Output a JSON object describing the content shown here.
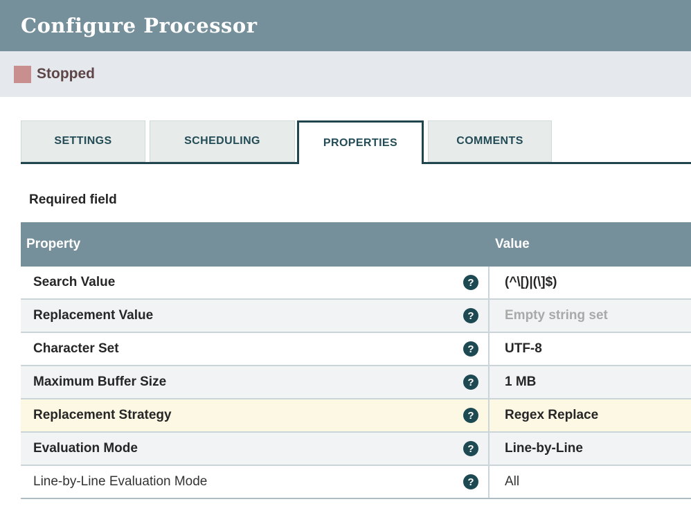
{
  "header": {
    "title": "Configure Processor"
  },
  "status": {
    "label": "Stopped",
    "color": "#C98F8F"
  },
  "tabs": [
    {
      "label": "SETTINGS",
      "active": false
    },
    {
      "label": "SCHEDULING",
      "active": false
    },
    {
      "label": "PROPERTIES",
      "active": true
    },
    {
      "label": "COMMENTS",
      "active": false
    }
  ],
  "required_note": "Required field",
  "table": {
    "columns": {
      "property": "Property",
      "value": "Value"
    },
    "help_icon": "?",
    "rows": [
      {
        "property": "Search Value",
        "value": "(^\\[)|(\\]$)",
        "required": true,
        "highlighted": false,
        "empty_set": false
      },
      {
        "property": "Replacement Value",
        "value": "Empty string set",
        "required": true,
        "highlighted": false,
        "empty_set": true
      },
      {
        "property": "Character Set",
        "value": "UTF-8",
        "required": true,
        "highlighted": false,
        "empty_set": false
      },
      {
        "property": "Maximum Buffer Size",
        "value": "1 MB",
        "required": true,
        "highlighted": false,
        "empty_set": false
      },
      {
        "property": "Replacement Strategy",
        "value": "Regex Replace",
        "required": true,
        "highlighted": true,
        "empty_set": false
      },
      {
        "property": "Evaluation Mode",
        "value": "Line-by-Line",
        "required": true,
        "highlighted": false,
        "empty_set": false
      },
      {
        "property": "Line-by-Line Evaluation Mode",
        "value": "All",
        "required": false,
        "highlighted": false,
        "empty_set": false
      }
    ]
  },
  "colors": {
    "titlebar_bg": "#76909B",
    "statusbar_bg": "#E5E8EC",
    "accent_teal": "#21454E",
    "highlight_row": "#FCF8E3",
    "alt_row": "#F2F3F5",
    "stopped_square": "#C98F8F",
    "stopped_text": "#5E4547"
  }
}
